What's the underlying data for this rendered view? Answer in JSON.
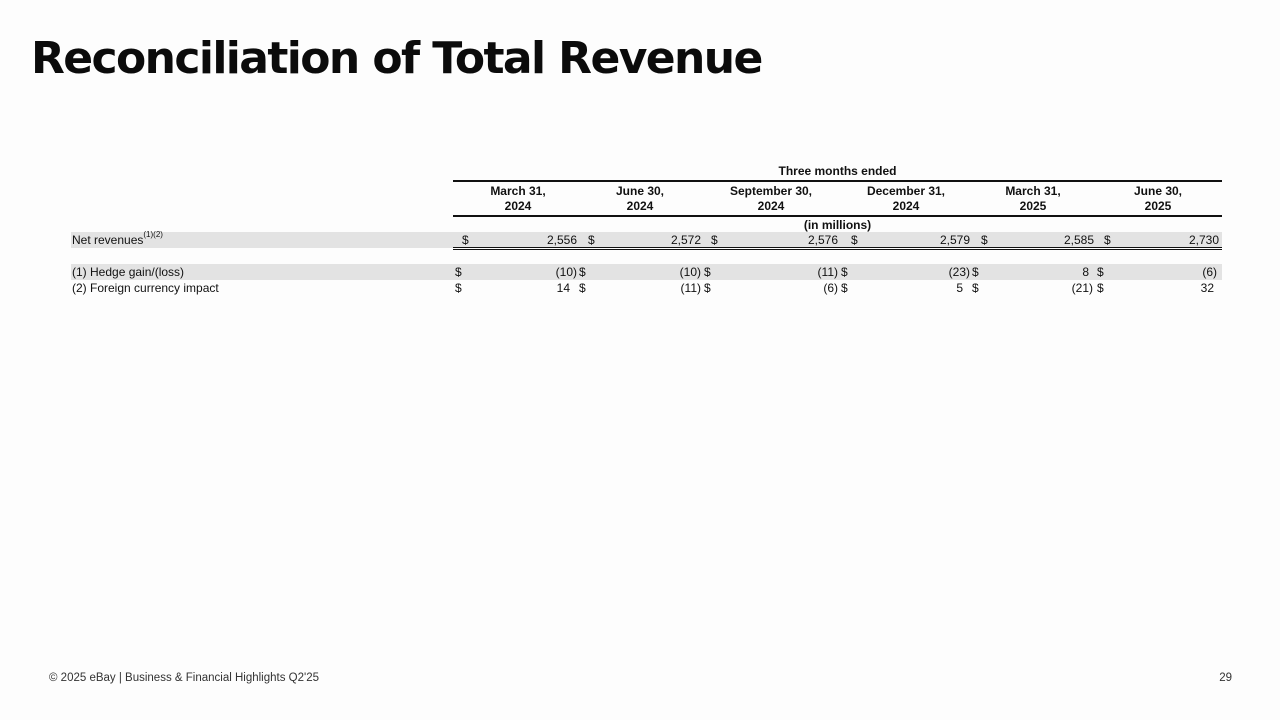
{
  "title": "Reconciliation of Total Revenue",
  "table": {
    "group_header": "Three months ended",
    "columns": [
      {
        "line1": "March 31,",
        "line2": "2024"
      },
      {
        "line1": "June 30,",
        "line2": "2024"
      },
      {
        "line1": "September 30,",
        "line2": "2024"
      },
      {
        "line1": "December 31,",
        "line2": "2024"
      },
      {
        "line1": "March 31,",
        "line2": "2025"
      },
      {
        "line1": "June 30,",
        "line2": "2025"
      }
    ],
    "units": "(in millions)",
    "currency_symbol": "$",
    "rows": [
      {
        "label": "Net revenues",
        "superscript": "(1)(2)",
        "values": [
          "2,556",
          "2,572",
          "2,576",
          "2,579",
          "2,585",
          "2,730"
        ]
      },
      {
        "label": "(1) Hedge gain/(loss)",
        "superscript": "",
        "values": [
          "(10)",
          "(10)",
          "(11)",
          "(23)",
          "8",
          "(6)"
        ]
      },
      {
        "label": "(2) Foreign currency impact",
        "superscript": "",
        "values": [
          "14",
          "(11)",
          "(6)",
          "5",
          "(21)",
          "32"
        ]
      }
    ]
  },
  "footer": {
    "text": "© 2025 eBay | Business & Financial Highlights Q2'25",
    "page_number": "29"
  }
}
